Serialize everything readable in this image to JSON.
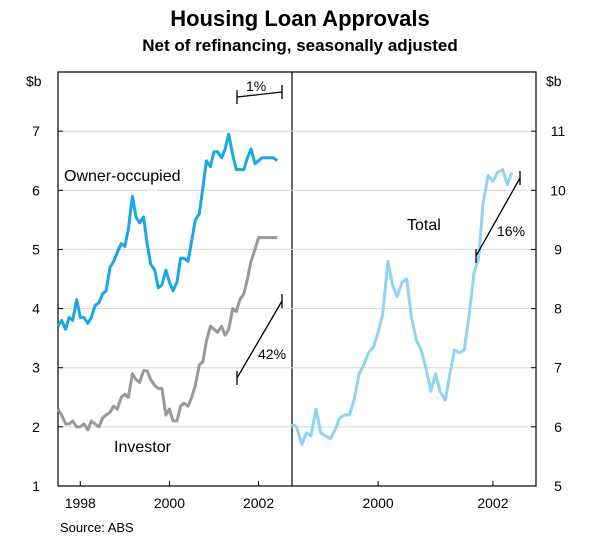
{
  "title": "Housing Loan Approvals",
  "subtitle": "Net of refinancing, seasonally adjusted",
  "source": "Source: ABS",
  "colors": {
    "owner": "#1ba6e5",
    "investor": "#999999",
    "total": "#8fd4f2",
    "text": "#000000"
  },
  "chart_data": [
    {
      "type": "line",
      "panel": "left",
      "ylabel": "$b",
      "ylim": [
        1,
        8
      ],
      "yticks": [
        1,
        2,
        3,
        4,
        5,
        6,
        7
      ],
      "xlim": [
        1997.5,
        2002.75
      ],
      "xticks": [
        1998,
        2000,
        2002
      ],
      "xtick_labels": [
        "1998",
        "2000",
        "2002"
      ],
      "series": [
        {
          "name": "Owner-occupied",
          "label": "Owner-occupied",
          "color": "#1ba6e5",
          "x": [
            1997.5,
            1997.58,
            1997.67,
            1997.75,
            1997.83,
            1997.92,
            1998.0,
            1998.08,
            1998.17,
            1998.25,
            1998.33,
            1998.42,
            1998.5,
            1998.58,
            1998.67,
            1998.75,
            1998.83,
            1998.92,
            1999.0,
            1999.08,
            1999.17,
            1999.25,
            1999.33,
            1999.42,
            1999.5,
            1999.58,
            1999.67,
            1999.75,
            1999.83,
            1999.92,
            2000.0,
            2000.08,
            2000.17,
            2000.25,
            2000.33,
            2000.42,
            2000.5,
            2000.58,
            2000.67,
            2000.75,
            2000.83,
            2000.92,
            2001.0,
            2001.08,
            2001.17,
            2001.25,
            2001.33,
            2001.42,
            2001.5,
            2001.58,
            2001.67,
            2001.75,
            2001.83,
            2001.92,
            2002.0,
            2002.08,
            2002.17,
            2002.25,
            2002.33,
            2002.42
          ],
          "values": [
            3.7,
            3.8,
            3.65,
            3.85,
            3.8,
            4.15,
            3.85,
            3.85,
            3.75,
            3.85,
            4.05,
            4.1,
            4.25,
            4.3,
            4.7,
            4.8,
            4.95,
            5.1,
            5.05,
            5.35,
            5.9,
            5.55,
            5.45,
            5.55,
            5.1,
            4.75,
            4.65,
            4.35,
            4.4,
            4.65,
            4.45,
            4.3,
            4.45,
            4.85,
            4.85,
            4.8,
            5.15,
            5.5,
            5.6,
            6.05,
            6.5,
            6.4,
            6.65,
            6.65,
            6.55,
            6.7,
            6.95,
            6.6,
            6.35,
            6.35,
            6.35,
            6.55,
            6.7,
            6.45,
            6.5,
            6.55,
            6.55,
            6.55,
            6.55,
            6.5
          ]
        },
        {
          "name": "Investor",
          "label": "Investor",
          "color": "#999999",
          "x": [
            1997.5,
            1997.58,
            1997.67,
            1997.75,
            1997.83,
            1997.92,
            1998.0,
            1998.08,
            1998.17,
            1998.25,
            1998.33,
            1998.42,
            1998.5,
            1998.58,
            1998.67,
            1998.75,
            1998.83,
            1998.92,
            1999.0,
            1999.08,
            1999.17,
            1999.25,
            1999.33,
            1999.42,
            1999.5,
            1999.58,
            1999.67,
            1999.75,
            1999.83,
            1999.92,
            2000.0,
            2000.08,
            2000.17,
            2000.25,
            2000.33,
            2000.42,
            2000.5,
            2000.58,
            2000.67,
            2000.75,
            2000.83,
            2000.92,
            2001.0,
            2001.08,
            2001.17,
            2001.25,
            2001.33,
            2001.42,
            2001.5,
            2001.58,
            2001.67,
            2001.75,
            2001.83,
            2001.92,
            2002.0,
            2002.08,
            2002.17,
            2002.25,
            2002.33,
            2002.42
          ],
          "values": [
            2.3,
            2.2,
            2.05,
            2.05,
            2.1,
            2.0,
            2.0,
            2.05,
            1.95,
            2.1,
            2.05,
            2.0,
            2.15,
            2.2,
            2.25,
            2.35,
            2.3,
            2.5,
            2.55,
            2.5,
            2.9,
            2.8,
            2.75,
            2.95,
            2.95,
            2.8,
            2.7,
            2.65,
            2.65,
            2.2,
            2.3,
            2.1,
            2.1,
            2.35,
            2.4,
            2.35,
            2.5,
            2.7,
            3.05,
            3.1,
            3.45,
            3.7,
            3.65,
            3.6,
            3.7,
            3.55,
            3.65,
            4.0,
            3.95,
            4.15,
            4.25,
            4.5,
            4.8,
            5.0,
            5.2,
            5.2,
            5.2,
            5.2,
            5.2,
            5.2
          ]
        }
      ],
      "annotations": [
        {
          "text": "1%",
          "series": "Owner-occupied"
        },
        {
          "text": "42%",
          "series": "Investor"
        }
      ]
    },
    {
      "type": "line",
      "panel": "right",
      "ylabel": "$b",
      "ylim": [
        5,
        12
      ],
      "yticks": [
        5,
        6,
        7,
        8,
        9,
        10,
        11
      ],
      "xlim": [
        1998.5,
        2002.75
      ],
      "xticks": [
        2000,
        2002
      ],
      "xtick_labels": [
        "2000",
        "2002"
      ],
      "series": [
        {
          "name": "Total",
          "label": "Total",
          "color": "#8fd4f2",
          "x": [
            1998.5,
            1998.58,
            1998.67,
            1998.75,
            1998.83,
            1998.92,
            1999.0,
            1999.08,
            1999.17,
            1999.25,
            1999.33,
            1999.42,
            1999.5,
            1999.58,
            1999.67,
            1999.75,
            1999.83,
            1999.92,
            2000.0,
            2000.08,
            2000.17,
            2000.25,
            2000.33,
            2000.42,
            2000.5,
            2000.58,
            2000.67,
            2000.75,
            2000.83,
            2000.92,
            2001.0,
            2001.08,
            2001.17,
            2001.25,
            2001.33,
            2001.42,
            2001.5,
            2001.58,
            2001.67,
            2001.75,
            2001.83,
            2001.92,
            2002.0,
            2002.08,
            2002.17,
            2002.25,
            2002.33
          ],
          "values": [
            6.05,
            6.0,
            5.7,
            5.9,
            5.85,
            6.3,
            5.9,
            5.85,
            5.8,
            5.95,
            6.15,
            6.2,
            6.2,
            6.45,
            6.9,
            7.05,
            7.25,
            7.35,
            7.6,
            7.9,
            8.8,
            8.4,
            8.2,
            8.45,
            8.5,
            7.85,
            7.45,
            7.3,
            7.0,
            6.6,
            6.9,
            6.6,
            6.45,
            6.9,
            7.3,
            7.25,
            7.3,
            7.85,
            8.6,
            8.85,
            9.8,
            10.25,
            10.15,
            10.3,
            10.35,
            10.1,
            10.3
          ]
        }
      ],
      "annotations": [
        {
          "text": "16%",
          "series": "Total"
        }
      ]
    }
  ]
}
